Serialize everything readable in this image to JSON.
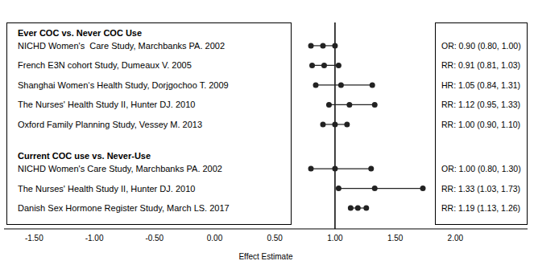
{
  "chart_data": {
    "type": "forest",
    "x_label": "Effect Estimate",
    "xlim": [
      -1.75,
      2.6
    ],
    "xticks": [
      {
        "value": -1.5,
        "label": "-1.50"
      },
      {
        "value": -1.0,
        "label": "-1.00"
      },
      {
        "value": -0.5,
        "label": "-0.50"
      },
      {
        "value": 0,
        "label": "0.00"
      },
      {
        "value": 0.5,
        "label": "0.50"
      },
      {
        "value": 1.0,
        "label": "1.00"
      },
      {
        "value": 1.5,
        "label": "1.50"
      },
      {
        "value": 2.0,
        "label": "2.00"
      }
    ],
    "reference_line": 1,
    "groups": [
      {
        "title": "Ever COC vs. Never COC Use",
        "studies": [
          {
            "name": "NICHD Women's  Care Study, Marchbanks PA. 2002",
            "estimate": 0.9,
            "lower": 0.8,
            "upper": 1.0,
            "estimate_label": "OR: 0.90 (0.80, 1.00)"
          },
          {
            "name": "French E3N cohort Study, Dumeaux V. 2005",
            "estimate": 0.91,
            "lower": 0.81,
            "upper": 1.03,
            "estimate_label": "RR: 0.91 (0.81, 1.03)"
          },
          {
            "name": "Shanghai Women‘s Health Study, Dorjgochoo T. 2009",
            "estimate": 1.05,
            "lower": 0.84,
            "upper": 1.31,
            "estimate_label": "HR: 1.05 (0.84, 1.31)"
          },
          {
            "name": "The Nurses' Health Study II, Hunter DJ. 2010",
            "estimate": 1.12,
            "lower": 0.95,
            "upper": 1.33,
            "estimate_label": "RR: 1.12 (0.95, 1.33)"
          },
          {
            "name": "Oxford Family Planning Study, Vessey M. 2013",
            "estimate": 1.0,
            "lower": 0.9,
            "upper": 1.1,
            "estimate_label": "RR: 1.00 (0.90, 1.10)"
          }
        ]
      },
      {
        "title": "Current COC use vs. Never-Use",
        "studies": [
          {
            "name": "NICHD Women's Care Study, Marchbanks PA. 2002",
            "estimate": 1.0,
            "lower": 0.8,
            "upper": 1.3,
            "estimate_label": "OR: 1.00 (0.80, 1.30)"
          },
          {
            "name": "The Nurses' Health Study II, Hunter DJ. 2010",
            "estimate": 1.33,
            "lower": 1.03,
            "upper": 1.73,
            "estimate_label": "RR: 1.33 (1.03, 1.73)"
          },
          {
            "name": "Danish Sex Hormone Register Study, March LS. 2017",
            "estimate": 1.19,
            "lower": 1.13,
            "upper": 1.26,
            "estimate_label": "RR: 1.19 (1.13, 1.26)"
          }
        ]
      }
    ]
  }
}
